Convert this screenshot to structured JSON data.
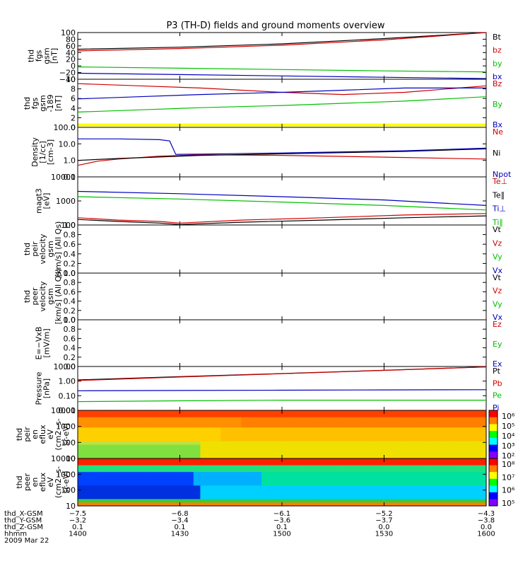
{
  "title": "P3 (TH-D) fields and ground moments overview",
  "chart_data": {
    "type": "line",
    "title": "P3 (TH-D) fields and ground moments overview",
    "x_range": [
      1400,
      1600
    ],
    "x_ticks": [
      "1400",
      "1430",
      "1500",
      "1530",
      "1600"
    ],
    "panels": [
      {
        "id": "fgs",
        "ylabel": [
          "thd",
          "fgs",
          "gsm",
          "[nT]"
        ],
        "ylim": [
          -40,
          100
        ],
        "yscale": "linear",
        "ticks": [
          "100",
          "80",
          "60",
          "40",
          "20",
          "0",
          "−20",
          "−40"
        ],
        "series": [
          {
            "name": "Bt",
            "color": "#000000",
            "x": [
              1400,
              1450,
              1500,
              1550,
              1600
            ],
            "y": [
              50,
              56,
              66,
              82,
              100
            ]
          },
          {
            "name": "bz",
            "color": "#d00000",
            "x": [
              1400,
              1450,
              1500,
              1550,
              1600
            ],
            "y": [
              45,
              52,
              62,
              78,
              100
            ]
          },
          {
            "name": "by",
            "color": "#00c000",
            "x": [
              1400,
              1450,
              1500,
              1550,
              1600
            ],
            "y": [
              -3,
              -7,
              -11,
              -15,
              -18
            ]
          },
          {
            "name": "bx",
            "color": "#0000c0",
            "x": [
              1400,
              1450,
              1500,
              1550,
              1600
            ],
            "y": [
              -22,
              -26,
              -30,
              -34,
              -38
            ]
          }
        ]
      },
      {
        "id": "fgs2",
        "ylabel": [
          "thd",
          "fgs",
          "gsm",
          "-189",
          "[nT]"
        ],
        "ylim": [
          0,
          11
        ],
        "yscale": "linear",
        "ticks": [
          "10",
          "8",
          "6",
          "4",
          "2",
          "0"
        ],
        "series": [
          {
            "name": "Bz",
            "color": "#d00000",
            "x": [
              1400,
              1430,
              1460,
              1500,
              1530,
              1560,
              1600
            ],
            "y": [
              10,
              9.5,
              9,
              8,
              7.5,
              8,
              9.5
            ]
          },
          {
            "name": "By",
            "color": "#00c000",
            "x": [
              1400,
              1430,
              1460,
              1500,
              1530,
              1560,
              1600
            ],
            "y": [
              3.5,
              4,
              4.5,
              5,
              5.5,
              6,
              7
            ]
          },
          {
            "name": "Bx",
            "color": "#0000c0",
            "x": [
              1400,
              1430,
              1460,
              1500,
              1530,
              1560,
              1600
            ],
            "y": [
              6.5,
              7,
              7.5,
              8,
              8.5,
              9,
              9
            ]
          }
        ],
        "band": {
          "color": "#ffff00",
          "y": [
            -1.2,
            -0.4
          ]
        }
      },
      {
        "id": "density",
        "ylabel": [
          "Density",
          "[1/cc]",
          "[cm-3]"
        ],
        "ylim": [
          0.1,
          100
        ],
        "yscale": "log",
        "ticks": [
          "100.0",
          "10.0",
          "1.0",
          "0.1"
        ],
        "series": [
          {
            "name": "Ne",
            "color": "#d00000",
            "x": [
              1400,
              1410,
              1420,
              1440,
              1460,
              1500,
              1560,
              1600
            ],
            "y": [
              0.5,
              0.9,
              1.2,
              1.8,
              2.2,
              2,
              1.5,
              1.2
            ]
          },
          {
            "name": "Ni",
            "color": "#000000",
            "x": [
              1400,
              1420,
              1440,
              1460,
              1500,
              1560,
              1600
            ],
            "y": [
              1.0,
              1.3,
              1.6,
              2.0,
              2.5,
              3.5,
              5
            ]
          },
          {
            "name": "Npot",
            "color": "#0000c0",
            "x": [
              1400,
              1420,
              1440,
              1445,
              1448,
              1460,
              1500,
              1560,
              1600
            ],
            "y": [
              20,
              20,
              18,
              15,
              2.3,
              2.4,
              2.8,
              3.8,
              5.5
            ]
          }
        ]
      },
      {
        "id": "temp",
        "ylabel": [
          "magt3",
          "[eV]"
        ],
        "ylim": [
          100,
          10000
        ],
        "yscale": "log",
        "ticks": [
          "10000",
          "1000",
          "100"
        ],
        "series": [
          {
            "name": "Te⊥",
            "color": "#d00000",
            "x": [
              1400,
              1420,
              1440,
              1450,
              1480,
              1520,
              1560,
              1600
            ],
            "y": [
              200,
              160,
              140,
              120,
              160,
              200,
              260,
              300
            ]
          },
          {
            "name": "Te∥",
            "color": "#000000",
            "x": [
              1400,
              1420,
              1440,
              1450,
              1480,
              1520,
              1560,
              1600
            ],
            "y": [
              170,
              140,
              120,
              105,
              130,
              160,
              200,
              240
            ]
          },
          {
            "name": "Ti⊥",
            "color": "#0000c0",
            "x": [
              1400,
              1450,
              1500,
              1550,
              1600
            ],
            "y": [
              2500,
              2000,
              1500,
              1100,
              650
            ]
          },
          {
            "name": "Ti∥",
            "color": "#00c000",
            "x": [
              1400,
              1450,
              1500,
              1550,
              1600
            ],
            "y": [
              1500,
              1200,
              900,
              650,
              420
            ]
          }
        ]
      },
      {
        "id": "peir_vel",
        "ylabel": [
          "thd",
          "peir",
          "velocity",
          "gsm",
          "[km/s] (All Qs)"
        ],
        "ylim": [
          0,
          1
        ],
        "yscale": "linear",
        "ticks": [
          "1.0",
          "0.8",
          "0.6",
          "0.4",
          "0.2",
          "0.0"
        ],
        "series": [],
        "legend": [
          {
            "name": "Vt",
            "color": "#000000"
          },
          {
            "name": "Vz",
            "color": "#d00000"
          },
          {
            "name": "Vy",
            "color": "#00c000"
          },
          {
            "name": "Vx",
            "color": "#0000c0"
          }
        ]
      },
      {
        "id": "peer_vel",
        "ylabel": [
          "thd",
          "peer",
          "velocity",
          "gsm",
          "[km/s] (All Qs)"
        ],
        "ylim": [
          0,
          1
        ],
        "yscale": "linear",
        "ticks": [
          "1.0",
          "0.8",
          "0.6",
          "0.4",
          "0.2",
          "0.0"
        ],
        "series": [],
        "legend": [
          {
            "name": "Vt",
            "color": "#000000"
          },
          {
            "name": "Vz",
            "color": "#d00000"
          },
          {
            "name": "Vy",
            "color": "#00c000"
          },
          {
            "name": "Vx",
            "color": "#0000c0"
          }
        ]
      },
      {
        "id": "efield",
        "ylabel": [
          "E=−VxB",
          "[mV/m]"
        ],
        "ylim": [
          0,
          1
        ],
        "yscale": "linear",
        "ticks": [
          "1.0",
          "0.8",
          "0.6",
          "0.4",
          "0.2",
          "0.0"
        ],
        "series": [],
        "legend": [
          {
            "name": "Ez",
            "color": "#d00000"
          },
          {
            "name": "Ey",
            "color": "#00c000"
          },
          {
            "name": "Ex",
            "color": "#0000c0"
          }
        ]
      },
      {
        "id": "pressure",
        "ylabel": [
          "Pressure",
          "[nPa]"
        ],
        "ylim": [
          0.01,
          10
        ],
        "yscale": "log",
        "ticks": [
          "10.00",
          "1.00",
          "0.10",
          "0.01"
        ],
        "series": [
          {
            "name": "Pt",
            "color": "#000000",
            "x": [
              1400,
              1450,
              1500,
              1550,
              1600
            ],
            "y": [
              1.2,
              2.0,
              3.3,
              5.5,
              9.5
            ]
          },
          {
            "name": "Pb",
            "color": "#d00000",
            "x": [
              1400,
              1450,
              1500,
              1550,
              1600
            ],
            "y": [
              1.1,
              1.9,
              3.2,
              5.4,
              9.4
            ]
          },
          {
            "name": "Pe",
            "color": "#00c000",
            "x": [
              1400,
              1450,
              1500,
              1550,
              1600
            ],
            "y": [
              0.04,
              0.045,
              0.05,
              0.05,
              0.05
            ]
          },
          {
            "name": "Pi",
            "color": "#0000c0",
            "x": [
              1400,
              1450,
              1500,
              1550,
              1600
            ],
            "y": [
              0.22,
              0.23,
              0.24,
              0.25,
              0.26
            ]
          }
        ]
      },
      {
        "id": "peir_spec",
        "type": "heatmap",
        "ylabel": [
          "thd",
          "peir",
          "en",
          "eflux",
          "eV",
          "(cm2 -s-",
          "sr-eV)"
        ],
        "ylim": [
          10,
          20000
        ],
        "yscale": "log",
        "ticks": [
          "10000",
          "1000",
          "100",
          "10"
        ],
        "colorbar": {
          "ticks": [
            "10⁶",
            "10⁵",
            "10⁴",
            "10³",
            "10²"
          ]
        }
      },
      {
        "id": "peer_spec",
        "type": "heatmap",
        "ylabel": [
          "thd",
          "peer",
          "en",
          "eflux",
          "eV",
          "(cm2 -s-",
          "sr-eV)"
        ],
        "ylim": [
          5,
          20000
        ],
        "yscale": "log",
        "ticks": [
          "10000",
          "1000",
          "100",
          "10"
        ],
        "colorbar": {
          "ticks": [
            "10⁸",
            "10⁷",
            "10⁶",
            "10⁵"
          ]
        }
      }
    ],
    "footer": {
      "rows": [
        {
          "label": "thd_X-GSM",
          "values": [
            "−7.5",
            "−6.8",
            "−6.1",
            "−5.2",
            "−4.3"
          ]
        },
        {
          "label": "thd_Y-GSM",
          "values": [
            "−3.2",
            "−3.4",
            "−3.6",
            "−3.7",
            "−3.8"
          ]
        },
        {
          "label": "thd_Z-GSM",
          "values": [
            "0.1",
            "0.1",
            "0.1",
            "0.0",
            "0.0"
          ]
        },
        {
          "label": "hhmm",
          "values": [
            "1400",
            "1430",
            "1500",
            "1530",
            "1600"
          ]
        }
      ],
      "date": "2009 Mar 22"
    }
  }
}
